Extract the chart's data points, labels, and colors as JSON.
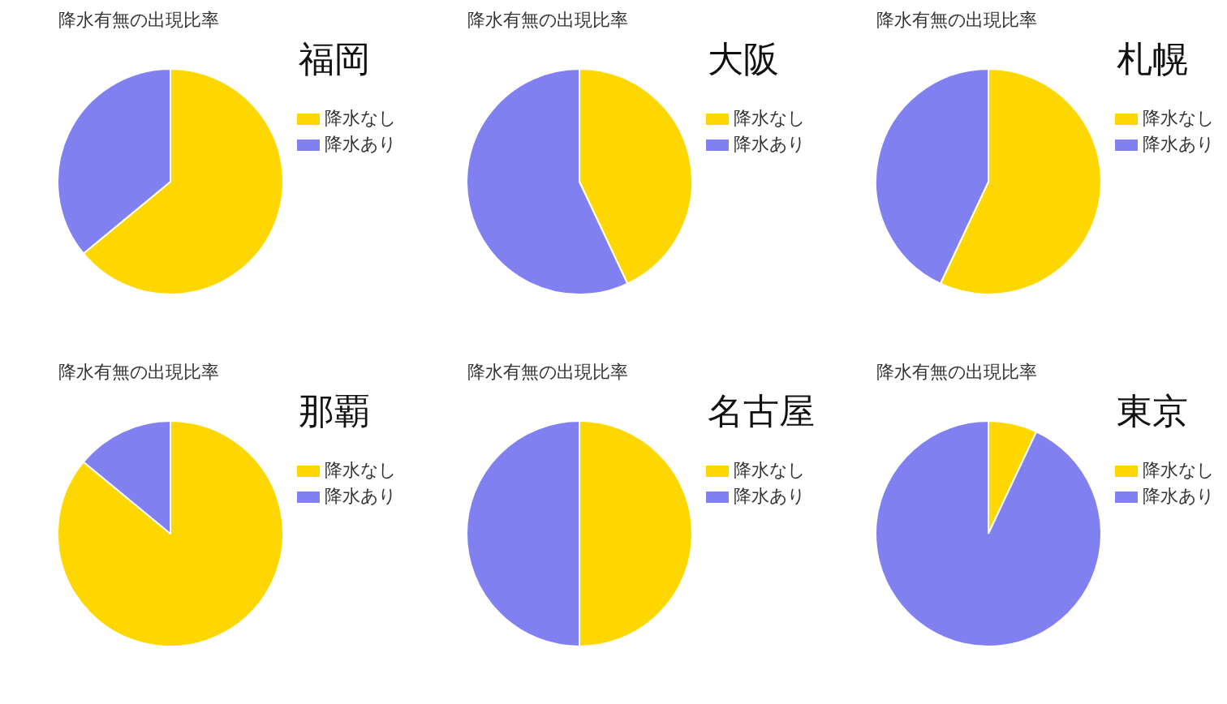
{
  "chart_data": [
    {
      "type": "pie",
      "title": "降水有無の出現比率",
      "subtitle": "福岡",
      "categories": [
        "降水なし",
        "降水あり"
      ],
      "values": [
        64,
        36
      ],
      "colors": [
        "#ffd700",
        "#8080f0"
      ],
      "legend": "right"
    },
    {
      "type": "pie",
      "title": "降水有無の出現比率",
      "subtitle": "大阪",
      "categories": [
        "降水なし",
        "降水あり"
      ],
      "values": [
        43,
        57
      ],
      "colors": [
        "#ffd700",
        "#8080f0"
      ],
      "legend": "right"
    },
    {
      "type": "pie",
      "title": "降水有無の出現比率",
      "subtitle": "札幌",
      "categories": [
        "降水なし",
        "降水あり"
      ],
      "values": [
        57,
        43
      ],
      "colors": [
        "#ffd700",
        "#8080f0"
      ],
      "legend": "right"
    },
    {
      "type": "pie",
      "title": "降水有無の出現比率",
      "subtitle": "那覇",
      "categories": [
        "降水なし",
        "降水あり"
      ],
      "values": [
        86,
        14
      ],
      "colors": [
        "#ffd700",
        "#8080f0"
      ],
      "legend": "right"
    },
    {
      "type": "pie",
      "title": "降水有無の出現比率",
      "subtitle": "名古屋",
      "categories": [
        "降水なし",
        "降水あり"
      ],
      "values": [
        50,
        50
      ],
      "colors": [
        "#ffd700",
        "#8080f0"
      ],
      "legend": "right"
    },
    {
      "type": "pie",
      "title": "降水有無の出現比率",
      "subtitle": "東京",
      "categories": [
        "降水なし",
        "降水あり"
      ],
      "values": [
        7,
        93
      ],
      "colors": [
        "#ffd700",
        "#8080f0"
      ],
      "legend": "right"
    }
  ]
}
